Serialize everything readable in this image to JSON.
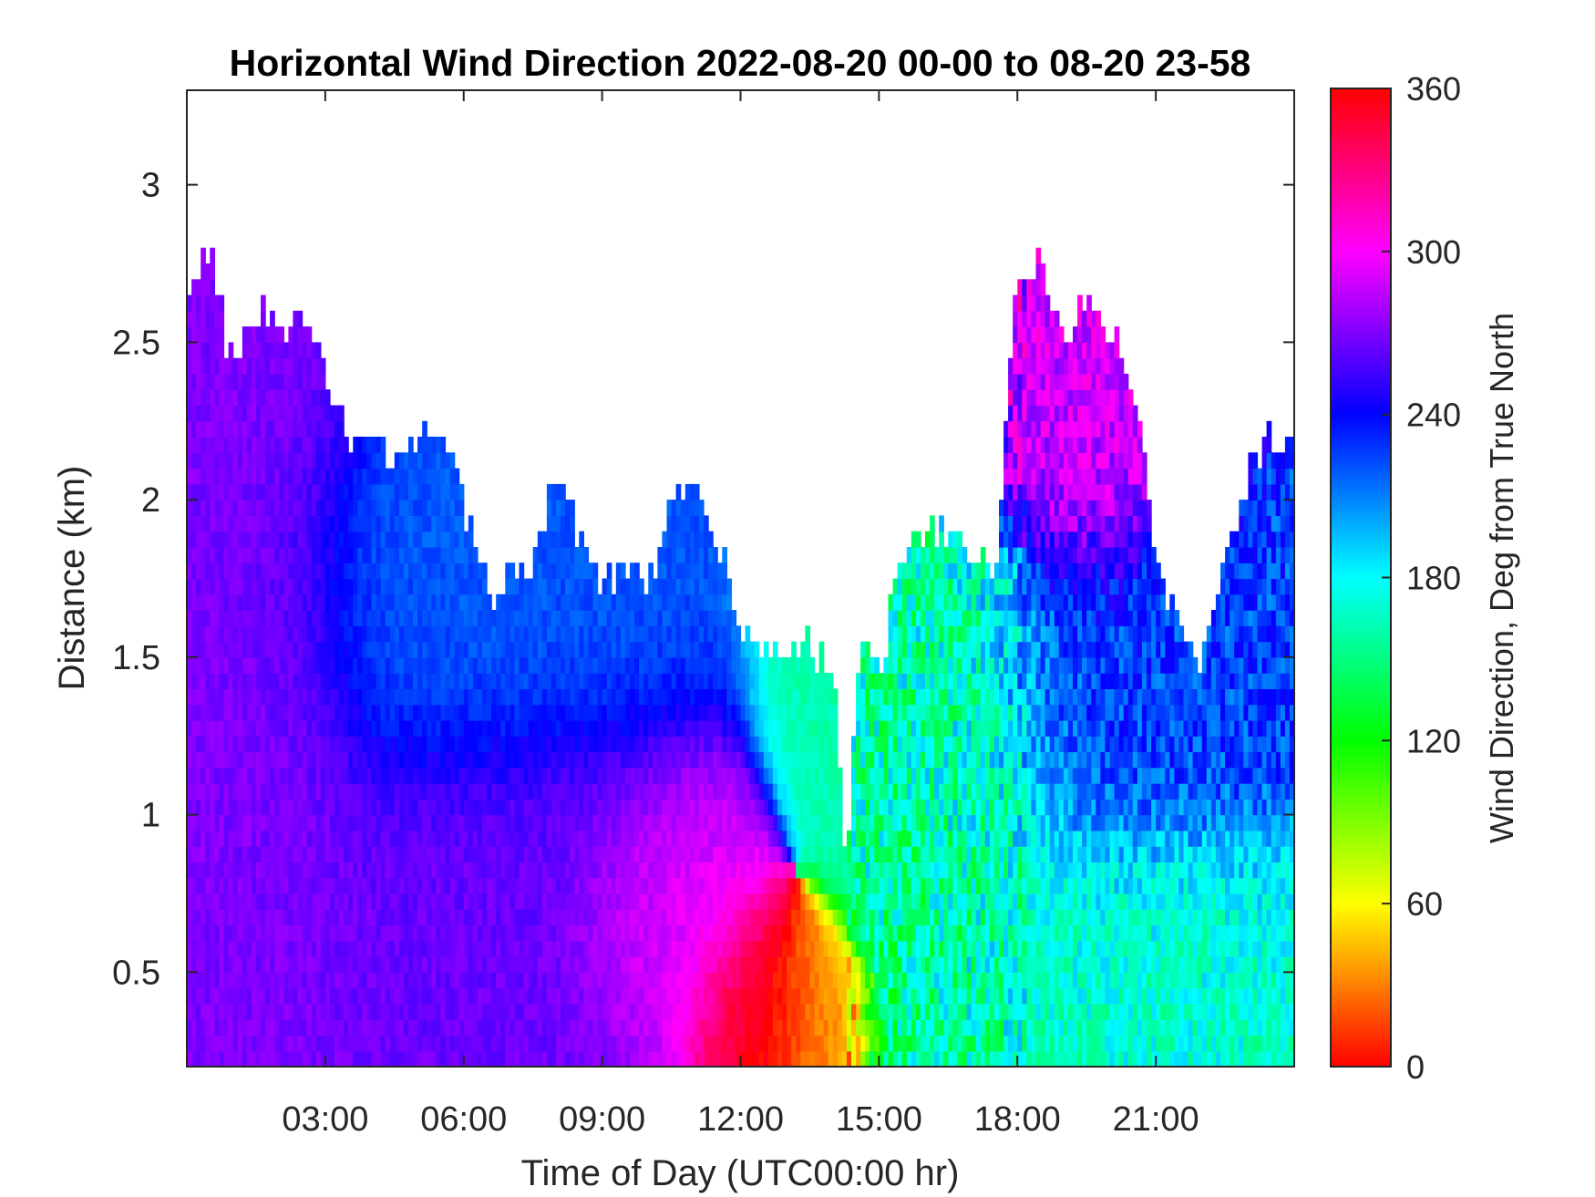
{
  "chart_data": {
    "type": "heatmap",
    "title": "Horizontal Wind Direction 2022-08-20 00-00 to 08-20 23-58",
    "xlabel": "Time of Day (UTC00:00 hr)",
    "ylabel": "Distance (km)",
    "colorbar_label": "Wind Direction, Deg from True North",
    "x_unit": "hours",
    "xlim": [
      0,
      24
    ],
    "ylim": [
      0.2,
      3.3
    ],
    "clim": [
      0,
      360
    ],
    "x_ticks": [
      3,
      6,
      9,
      12,
      15,
      18,
      21
    ],
    "x_tick_labels": [
      "03:00",
      "06:00",
      "09:00",
      "12:00",
      "15:00",
      "18:00",
      "21:00"
    ],
    "y_ticks": [
      0.5,
      1,
      1.5,
      2,
      2.5,
      3
    ],
    "y_tick_labels": [
      "0.5",
      "1",
      "1.5",
      "2",
      "2.5",
      "3"
    ],
    "colorbar_ticks": [
      0,
      60,
      120,
      180,
      240,
      300,
      360
    ],
    "colorbar_tick_labels": [
      "0",
      "60",
      "120",
      "180",
      "240",
      "300",
      "360"
    ],
    "colormap": "hsv",
    "grid": false,
    "data_top_km": [
      [
        0.0,
        2.7
      ],
      [
        0.5,
        2.8
      ],
      [
        1.0,
        2.4
      ],
      [
        1.5,
        2.6
      ],
      [
        2.0,
        2.5
      ],
      [
        2.5,
        2.6
      ],
      [
        3.0,
        2.4
      ],
      [
        3.5,
        2.15
      ],
      [
        4.0,
        2.2
      ],
      [
        4.5,
        2.1
      ],
      [
        5.0,
        2.15
      ],
      [
        5.5,
        2.25
      ],
      [
        6.0,
        2.0
      ],
      [
        6.5,
        1.7
      ],
      [
        7.0,
        1.75
      ],
      [
        7.5,
        1.8
      ],
      [
        8.0,
        2.1
      ],
      [
        8.5,
        1.85
      ],
      [
        9.0,
        1.75
      ],
      [
        9.5,
        1.8
      ],
      [
        10.0,
        1.7
      ],
      [
        10.5,
        2.0
      ],
      [
        11.0,
        2.05
      ],
      [
        11.5,
        1.85
      ],
      [
        12.0,
        1.6
      ],
      [
        12.5,
        1.5
      ],
      [
        13.0,
        1.5
      ],
      [
        13.5,
        1.55
      ],
      [
        14.0,
        1.45
      ],
      [
        14.3,
        0.8
      ],
      [
        14.6,
        1.6
      ],
      [
        15.0,
        1.45
      ],
      [
        15.5,
        1.8
      ],
      [
        16.0,
        1.9
      ],
      [
        16.5,
        1.9
      ],
      [
        17.0,
        1.85
      ],
      [
        17.5,
        1.75
      ],
      [
        18.0,
        2.7
      ],
      [
        18.5,
        2.8
      ],
      [
        19.0,
        2.5
      ],
      [
        19.5,
        2.6
      ],
      [
        20.0,
        2.5
      ],
      [
        20.5,
        2.4
      ],
      [
        21.0,
        1.8
      ],
      [
        21.5,
        1.6
      ],
      [
        22.0,
        1.5
      ],
      [
        22.5,
        1.8
      ],
      [
        23.0,
        2.1
      ],
      [
        23.5,
        2.2
      ],
      [
        24.0,
        2.2
      ]
    ],
    "direction_regions": [
      {
        "x": [
          0,
          3
        ],
        "y": [
          0.2,
          2.4
        ],
        "direction_deg": 270
      },
      {
        "x": [
          3,
          9
        ],
        "y": [
          1.2,
          2.1
        ],
        "direction_deg": 220
      },
      {
        "x": [
          3,
          10
        ],
        "y": [
          0.2,
          1.2
        ],
        "direction_deg": 265
      },
      {
        "x": [
          9,
          12
        ],
        "y": [
          0.4,
          0.9
        ],
        "direction_deg": 295
      },
      {
        "x": [
          11.5,
          13
        ],
        "y": [
          0.2,
          0.6
        ],
        "direction_deg": 355
      },
      {
        "x": [
          13,
          14.3
        ],
        "y": [
          0.2,
          0.6
        ],
        "direction_deg": 30
      },
      {
        "x": [
          14.3,
          18
        ],
        "y": [
          0.2,
          1.9
        ],
        "direction_deg": 160
      },
      {
        "x": [
          18,
          21
        ],
        "y": [
          1.9,
          2.8
        ],
        "direction_deg": 290
      },
      {
        "x": [
          18,
          24
        ],
        "y": [
          0.9,
          1.8
        ],
        "direction_deg": 225
      },
      {
        "x": [
          18,
          24
        ],
        "y": [
          0.2,
          0.9
        ],
        "direction_deg": 170
      }
    ]
  }
}
